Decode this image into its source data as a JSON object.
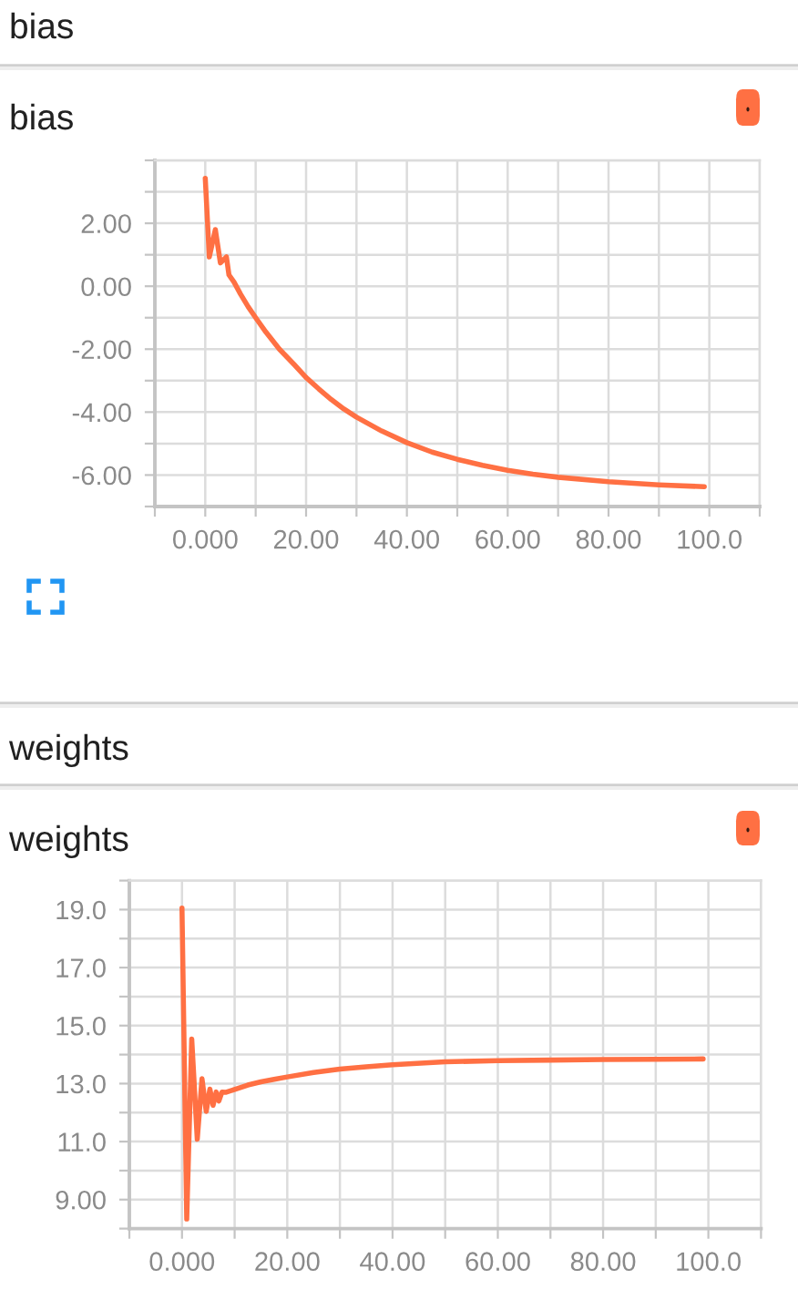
{
  "chart_data": [
    {
      "type": "line",
      "title": "bias",
      "subtitle": "bias",
      "x": [
        0,
        0.8,
        2,
        3,
        4.2,
        4.7,
        5.7,
        7,
        8.5,
        10,
        12,
        14.7,
        17.7,
        20,
        22.5,
        25,
        27.5,
        30,
        35,
        40,
        45,
        50,
        55,
        60,
        65,
        70,
        80,
        90,
        99
      ],
      "series": [
        {
          "color": "#ff7043",
          "values": [
            3.43,
            0.93,
            1.8,
            0.74,
            0.93,
            0.36,
            0.13,
            -0.25,
            -0.65,
            -1.0,
            -1.45,
            -2.0,
            -2.5,
            -2.9,
            -3.26,
            -3.6,
            -3.9,
            -4.16,
            -4.6,
            -4.97,
            -5.27,
            -5.5,
            -5.69,
            -5.85,
            -5.97,
            -6.07,
            -6.21,
            -6.31,
            -6.37
          ]
        }
      ],
      "xlim": [
        -10,
        110
      ],
      "xticks": [
        {
          "value": -10,
          "label": null
        },
        {
          "value": 0,
          "label": "0.000"
        },
        {
          "value": 10,
          "label": null
        },
        {
          "value": 20,
          "label": "20.00"
        },
        {
          "value": 30,
          "label": null
        },
        {
          "value": 40,
          "label": "40.00"
        },
        {
          "value": 50,
          "label": null
        },
        {
          "value": 60,
          "label": "60.00"
        },
        {
          "value": 70,
          "label": null
        },
        {
          "value": 80,
          "label": "80.00"
        },
        {
          "value": 90,
          "label": null
        },
        {
          "value": 100,
          "label": "100.0"
        },
        {
          "value": 110,
          "label": null
        }
      ],
      "ylim": [
        -7,
        4
      ],
      "yticks": [
        {
          "value": -7,
          "label": null
        },
        {
          "value": -6,
          "label": "-6.00"
        },
        {
          "value": -5,
          "label": null
        },
        {
          "value": -4,
          "label": "-4.00"
        },
        {
          "value": -3,
          "label": null
        },
        {
          "value": -2,
          "label": "-2.00"
        },
        {
          "value": -1,
          "label": null
        },
        {
          "value": 0,
          "label": "0.00"
        },
        {
          "value": 1,
          "label": null
        },
        {
          "value": 2,
          "label": "2.00"
        },
        {
          "value": 3,
          "label": null
        },
        {
          "value": 4,
          "label": null
        }
      ],
      "grid": true
    },
    {
      "type": "line",
      "title": "weights",
      "subtitle": "weights",
      "x": [
        0,
        0.9,
        1.85,
        2.9,
        3.8,
        4.6,
        5.3,
        5.9,
        6.5,
        7.0,
        7.6,
        8.4,
        10,
        12.5,
        15,
        17.5,
        20,
        25,
        30,
        35,
        40,
        50,
        60,
        70,
        80,
        90,
        99
      ],
      "series": [
        {
          "color": "#ff7043",
          "values": [
            19.05,
            8.33,
            14.54,
            11.08,
            13.17,
            12.04,
            12.81,
            12.25,
            12.71,
            12.4,
            12.71,
            12.7,
            12.8,
            12.95,
            13.06,
            13.15,
            13.23,
            13.38,
            13.5,
            13.58,
            13.65,
            13.75,
            13.79,
            13.81,
            13.83,
            13.84,
            13.85
          ]
        }
      ],
      "xlim": [
        -10,
        110
      ],
      "xticks": [
        {
          "value": -10,
          "label": null
        },
        {
          "value": 0,
          "label": "0.000"
        },
        {
          "value": 10,
          "label": null
        },
        {
          "value": 20,
          "label": "20.00"
        },
        {
          "value": 30,
          "label": null
        },
        {
          "value": 40,
          "label": "40.00"
        },
        {
          "value": 50,
          "label": null
        },
        {
          "value": 60,
          "label": "60.00"
        },
        {
          "value": 70,
          "label": null
        },
        {
          "value": 80,
          "label": "80.00"
        },
        {
          "value": 90,
          "label": null
        },
        {
          "value": 100,
          "label": "100.0"
        },
        {
          "value": 110,
          "label": null
        }
      ],
      "ylim": [
        8,
        20
      ],
      "yticks": [
        {
          "value": 8,
          "label": null
        },
        {
          "value": 9,
          "label": "9.00"
        },
        {
          "value": 10,
          "label": null
        },
        {
          "value": 11,
          "label": "11.0"
        },
        {
          "value": 12,
          "label": null
        },
        {
          "value": 13,
          "label": "13.0"
        },
        {
          "value": 14,
          "label": null
        },
        {
          "value": 15,
          "label": "15.0"
        },
        {
          "value": 16,
          "label": null
        },
        {
          "value": 17,
          "label": "17.0"
        },
        {
          "value": 18,
          "label": null
        },
        {
          "value": 19,
          "label": "19.0"
        },
        {
          "value": 20,
          "label": null
        }
      ],
      "grid": true
    }
  ]
}
